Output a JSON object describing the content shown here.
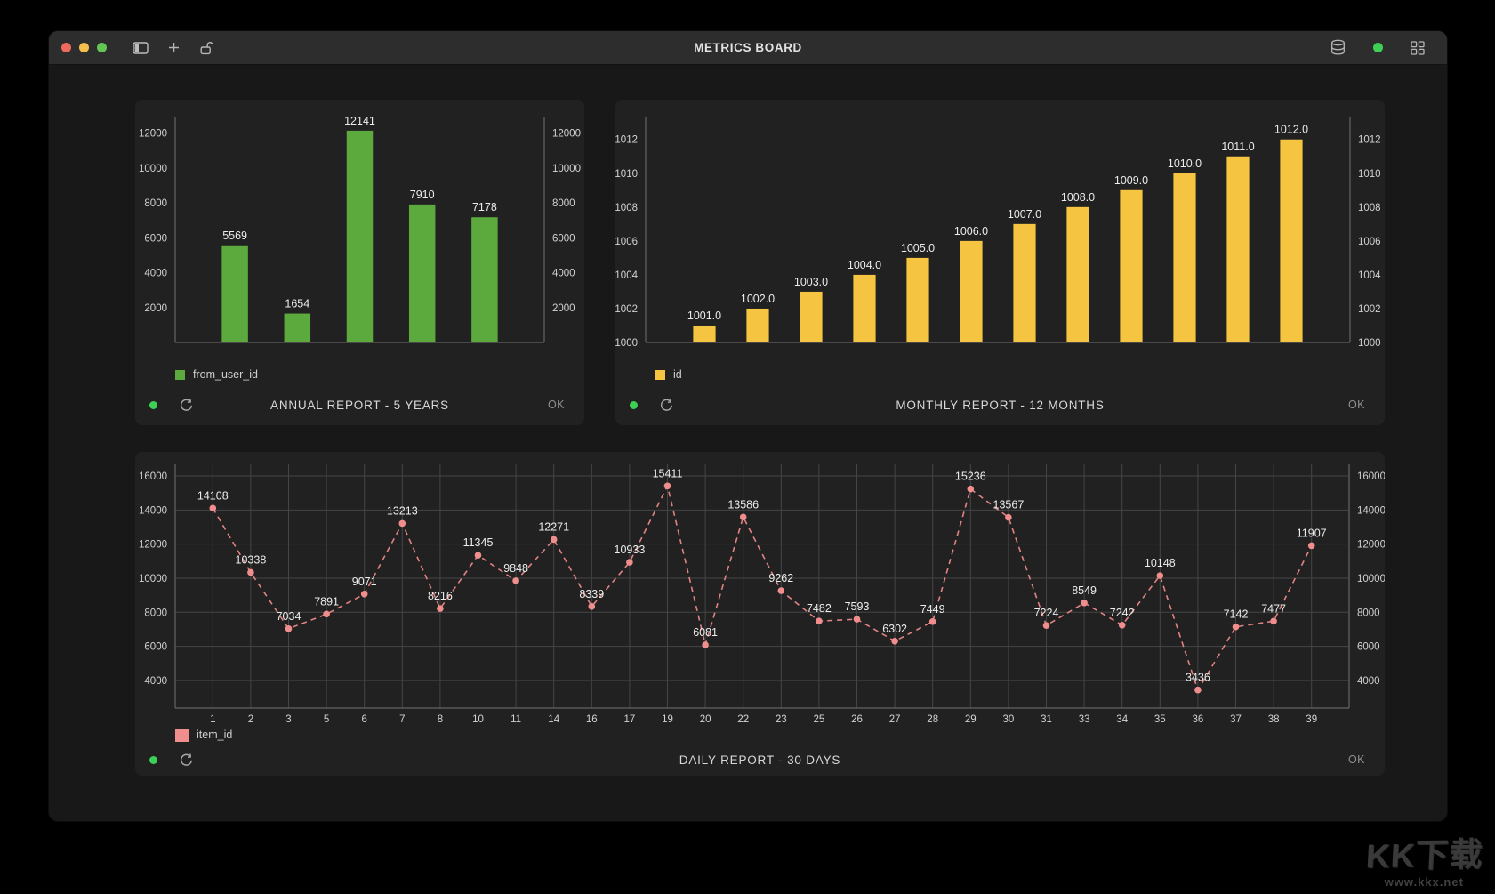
{
  "window": {
    "title": "METRICS BOARD"
  },
  "colors": {
    "status_green": "#3ecf55",
    "bar_green": "#5caa3e",
    "bar_yellow": "#f5c542",
    "line_pink": "#e28282",
    "marker_pink": "#f08d8d"
  },
  "watermark": {
    "logo": "KK下载",
    "url": "www.kkx.net"
  },
  "chart_data": [
    {
      "type": "bar",
      "title": "ANNUAL REPORT - 5 YEARS",
      "legend": "from_user_id",
      "ok_label": "OK",
      "color": "#5caa3e",
      "values": [
        5569,
        1654,
        12141,
        7910,
        7178
      ],
      "value_labels": [
        "5569",
        "1654",
        "12141",
        "7910",
        "7178"
      ],
      "x_tick_labels": [],
      "y_ticks": [
        2000,
        4000,
        6000,
        8000,
        10000,
        12000
      ],
      "ylim": [
        0,
        12900
      ],
      "baseline": 0,
      "grid": false,
      "legend_position": "bottom-left",
      "margins": {
        "t": 20,
        "r": 45,
        "b": 25,
        "l": 45
      },
      "pad": 32,
      "bar_frac": 0.42
    },
    {
      "type": "bar",
      "title": "MONTHLY REPORT - 12 MONTHS",
      "legend": "id",
      "ok_label": "OK",
      "color": "#f5c542",
      "values": [
        1001,
        1002,
        1003,
        1004,
        1005,
        1006,
        1007,
        1008,
        1009,
        1010,
        1011,
        1012
      ],
      "value_labels": [
        "1001.0",
        "1002.0",
        "1003.0",
        "1004.0",
        "1005.0",
        "1006.0",
        "1007.0",
        "1008.0",
        "1009.0",
        "1010.0",
        "1011.0",
        "1012.0"
      ],
      "x_tick_labels": [],
      "y_ticks": [
        1000,
        1002,
        1004,
        1006,
        1008,
        1010,
        1012
      ],
      "ylim": [
        1000,
        1013.3
      ],
      "baseline": 1000,
      "grid": false,
      "legend_position": "bottom-left",
      "margins": {
        "t": 20,
        "r": 39,
        "b": 25,
        "l": 34
      },
      "pad": 36,
      "bar_frac": 0.42
    },
    {
      "type": "line",
      "title": "DAILY REPORT - 30 DAYS",
      "legend": "item_id",
      "ok_label": "OK",
      "color": "#e28282",
      "marker_color": "#f08d8d",
      "line_style": "dashed",
      "x_tick_labels": [
        "1",
        "2",
        "3",
        "5",
        "6",
        "7",
        "8",
        "10",
        "11",
        "14",
        "16",
        "17",
        "19",
        "20",
        "22",
        "23",
        "25",
        "26",
        "27",
        "28",
        "29",
        "30",
        "31",
        "33",
        "34",
        "35",
        "36",
        "37",
        "38",
        "39"
      ],
      "values": [
        14108,
        10338,
        7034,
        7891,
        9071,
        13213,
        8216,
        11345,
        9848,
        12271,
        8339,
        10933,
        15411,
        6081,
        13586,
        9262,
        7482,
        7593,
        6302,
        7449,
        15236,
        13567,
        7224,
        8549,
        7242,
        10148,
        3436,
        7142,
        7477,
        11907
      ],
      "value_labels": [
        "14108",
        "10338",
        "7034",
        "7891",
        "9071",
        "13213",
        "8216",
        "11345",
        "9848",
        "12271",
        "8339",
        "10933",
        "15411",
        "6081",
        "13586",
        "9262",
        "7482",
        "7593",
        "6302",
        "7449",
        "15236",
        "13567",
        "7224",
        "8549",
        "7242",
        "10148",
        "3436",
        "7142",
        "7477",
        "11907"
      ],
      "y_ticks": [
        4000,
        6000,
        8000,
        10000,
        12000,
        14000,
        16000
      ],
      "ylim": [
        2376,
        16680
      ],
      "grid": true,
      "legend_position": "bottom-left",
      "margins": {
        "t": 14,
        "r": 40,
        "b": 20,
        "l": 45
      },
      "pad": 21
    }
  ]
}
